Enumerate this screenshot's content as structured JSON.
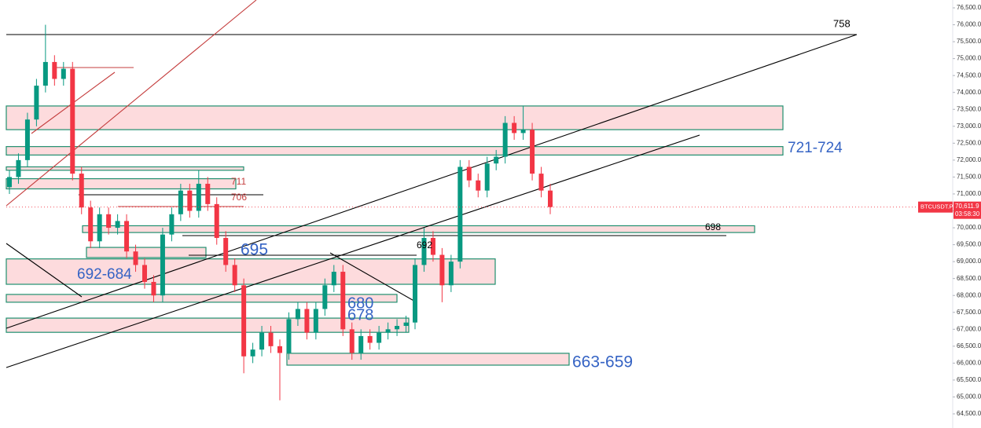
{
  "chart_data": {
    "type": "candlestick",
    "symbol": "BTCUSDT.P",
    "last_price": {
      "value": 70611.9,
      "label": "70,611.9"
    },
    "countdown": "03:58:30",
    "up_color": "#089981",
    "down_color": "#f23645",
    "categories": [
      null,
      null,
      null,
      null,
      null,
      null,
      null,
      null,
      null,
      null,
      null,
      null,
      null,
      null,
      null,
      null,
      null,
      null,
      null,
      null,
      null,
      null,
      null,
      null,
      null,
      null,
      null,
      null,
      null,
      null,
      null,
      null,
      null,
      null,
      null,
      null,
      null,
      null,
      null,
      null,
      null,
      null,
      null,
      null,
      null,
      null,
      null,
      null,
      null,
      null,
      null,
      null,
      null,
      null,
      null,
      null,
      null,
      null,
      null,
      null,
      null
    ],
    "open": [
      71200,
      71500,
      72000,
      73200,
      74200,
      74900,
      74400,
      74700,
      71600,
      70600,
      69600,
      70400,
      70000,
      70200,
      69300,
      68900,
      68400,
      68000,
      69800,
      70400,
      71100,
      70500,
      71300,
      70700,
      69700,
      68900,
      68300,
      66200,
      66400,
      66900,
      66500,
      66300,
      67300,
      67600,
      66900,
      67600,
      68300,
      68700,
      67000,
      66300,
      66800,
      66600,
      66900,
      67000,
      67100,
      67200,
      68900,
      69700,
      69200,
      68300,
      69000,
      71800,
      71400,
      71100,
      71900,
      72100,
      73100,
      72800,
      72900,
      71600,
      71100
    ],
    "high": [
      71700,
      72200,
      73400,
      74400,
      76000,
      75100,
      74900,
      74900,
      71800,
      70800,
      70600,
      70600,
      70400,
      70400,
      69500,
      69100,
      68600,
      70000,
      70600,
      71300,
      71300,
      71700,
      71500,
      70900,
      69900,
      69100,
      68500,
      66600,
      67100,
      67100,
      66700,
      67500,
      67800,
      67800,
      67800,
      68500,
      68900,
      68900,
      67200,
      67000,
      67000,
      67100,
      67200,
      67300,
      67400,
      69100,
      70000,
      69900,
      69400,
      69200,
      72000,
      72000,
      71600,
      72100,
      72300,
      73300,
      73300,
      73600,
      73100,
      71800,
      71300
    ],
    "low": [
      71000,
      71300,
      71800,
      73000,
      74000,
      74200,
      74200,
      71400,
      70400,
      69400,
      69400,
      69800,
      69800,
      69100,
      68700,
      68200,
      67800,
      67800,
      69600,
      70200,
      70300,
      70300,
      70500,
      69500,
      68700,
      68100,
      65700,
      66000,
      66200,
      66300,
      64900,
      66100,
      67100,
      66700,
      66700,
      67400,
      68100,
      66800,
      66100,
      66100,
      66400,
      66400,
      66700,
      66800,
      66900,
      67000,
      68700,
      69000,
      67800,
      68100,
      68800,
      71200,
      70900,
      70900,
      71700,
      71900,
      72600,
      72600,
      71400,
      70900,
      70400
    ],
    "close": [
      71500,
      72000,
      73200,
      74200,
      74900,
      74400,
      74700,
      71600,
      70600,
      69600,
      70400,
      70000,
      70200,
      69300,
      68900,
      68400,
      68000,
      69800,
      70400,
      71100,
      70500,
      71300,
      70700,
      69700,
      68900,
      68300,
      66200,
      66400,
      66900,
      66500,
      66300,
      67300,
      67600,
      66900,
      67600,
      68300,
      68700,
      67000,
      66300,
      66800,
      66600,
      66900,
      67000,
      67100,
      67200,
      68900,
      69700,
      69200,
      68300,
      69000,
      71800,
      71400,
      71100,
      71900,
      72100,
      73100,
      72800,
      72900,
      71600,
      71100,
      70611.9
    ],
    "ylim": [
      64500,
      76500
    ],
    "yticks": [
      {
        "value": 64500,
        "label": "64,500.0"
      },
      {
        "value": 65000,
        "label": "65,000.0"
      },
      {
        "value": 65500,
        "label": "65,500.0"
      },
      {
        "value": 66000,
        "label": "66,000.0"
      },
      {
        "value": 66500,
        "label": "66,500.0"
      },
      {
        "value": 67000,
        "label": "67,000.0"
      },
      {
        "value": 67500,
        "label": "67,500.0"
      },
      {
        "value": 68000,
        "label": "68,000.0"
      },
      {
        "value": 68500,
        "label": "68,500.0"
      },
      {
        "value": 69000,
        "label": "69,000.0"
      },
      {
        "value": 69500,
        "label": "69,500.0"
      },
      {
        "value": 70000,
        "label": "70,000.0"
      },
      {
        "value": 70500,
        "label": "70,500.0"
      },
      {
        "value": 71000,
        "label": "71,000.0"
      },
      {
        "value": 71500,
        "label": "71,500.0"
      },
      {
        "value": 72000,
        "label": "72,000.0"
      },
      {
        "value": 72500,
        "label": "72,500.0"
      },
      {
        "value": 73000,
        "label": "73,000.0"
      },
      {
        "value": 73500,
        "label": "73,500.0"
      },
      {
        "value": 74000,
        "label": "74,000.0"
      },
      {
        "value": 74500,
        "label": "74,500.0"
      },
      {
        "value": 75000,
        "label": "75,000.0"
      },
      {
        "value": 75500,
        "label": "75,500.0"
      },
      {
        "value": 76000,
        "label": "76,000.0"
      },
      {
        "value": 76500,
        "label": "76,500.0"
      }
    ],
    "zones": [
      {
        "top": 73600,
        "bottom": 72900
      },
      {
        "top": 72400,
        "bottom": 72150
      },
      {
        "top": 71800,
        "bottom": 71700
      },
      {
        "top": 71450,
        "bottom": 71150
      },
      {
        "top": 70060,
        "bottom": 69860
      },
      {
        "top": 69420,
        "bottom": 69120
      },
      {
        "top": 69080,
        "bottom": 68330
      },
      {
        "top": 68030,
        "bottom": 67800
      },
      {
        "top": 67330,
        "bottom": 66910
      },
      {
        "top": 66290,
        "bottom": 65940
      }
    ],
    "annotations": [
      "758",
      "721-724",
      "711",
      "706",
      "698",
      "695",
      "692",
      "692-684",
      "680",
      "678",
      "663-659"
    ]
  }
}
